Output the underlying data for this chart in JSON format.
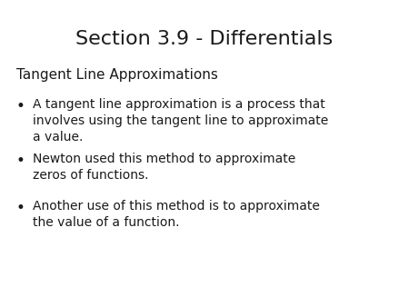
{
  "title": "Section 3.9 - Differentials",
  "subtitle": "Tangent Line Approximations",
  "bullets": [
    "A tangent line approximation is a process that\ninvolves using the tangent line to approximate\na value.",
    "Newton used this method to approximate\nzeros of functions.",
    "Another use of this method is to approximate\nthe value of a function."
  ],
  "background_color": "#ffffff",
  "text_color": "#1a1a1a",
  "title_fontsize": 16,
  "subtitle_fontsize": 11,
  "bullet_fontsize": 10,
  "title_font": "DejaVu Sans",
  "body_font": "DejaVu Sans"
}
